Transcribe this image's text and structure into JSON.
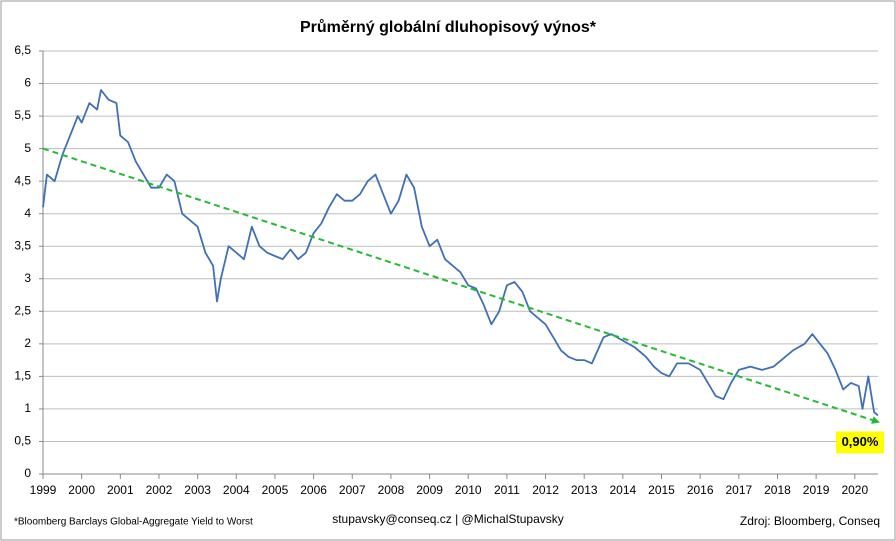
{
  "chart_data": {
    "type": "line",
    "title": "Průměrný globální dluhopisový výnos*",
    "footnote": "*Bloomberg Barclays Global-Aggregate Yield to Worst",
    "contact": "stupavsky@conseq.cz | @MichalStupavsky",
    "source": "Zdroj: Bloomberg, Conseq",
    "xlim": [
      1999,
      2020.6
    ],
    "xticks": [
      1999,
      2000,
      2001,
      2002,
      2003,
      2004,
      2005,
      2006,
      2007,
      2008,
      2009,
      2010,
      2011,
      2012,
      2013,
      2014,
      2015,
      2016,
      2017,
      2018,
      2019,
      2020
    ],
    "ylim": [
      0,
      6.5
    ],
    "yticks": [
      0,
      {
        "value": 0.5,
        "label": "0,5"
      },
      1,
      {
        "value": 1.5,
        "label": "1,5"
      },
      2,
      {
        "value": 2.5,
        "label": "2,5"
      },
      3,
      {
        "value": 3.5,
        "label": "3,5"
      },
      4,
      {
        "value": 4.5,
        "label": "4,5"
      },
      5,
      {
        "value": 5.5,
        "label": "5,5"
      },
      6,
      {
        "value": 6.5,
        "label": "6,5"
      }
    ],
    "grid": true,
    "series": [
      {
        "color": "#3f6fb5",
        "x": [
          1999.0,
          1999.1,
          1999.3,
          1999.5,
          1999.7,
          1999.9,
          2000.0,
          2000.2,
          2000.4,
          2000.5,
          2000.7,
          2000.9,
          2001.0,
          2001.2,
          2001.4,
          2001.6,
          2001.8,
          2002.0,
          2002.2,
          2002.4,
          2002.6,
          2002.8,
          2003.0,
          2003.2,
          2003.4,
          2003.5,
          2003.6,
          2003.8,
          2004.0,
          2004.2,
          2004.4,
          2004.6,
          2004.8,
          2005.0,
          2005.2,
          2005.4,
          2005.6,
          2005.8,
          2006.0,
          2006.2,
          2006.4,
          2006.6,
          2006.8,
          2007.0,
          2007.2,
          2007.4,
          2007.6,
          2007.8,
          2008.0,
          2008.2,
          2008.4,
          2008.6,
          2008.8,
          2009.0,
          2009.2,
          2009.4,
          2009.6,
          2009.8,
          2010.0,
          2010.2,
          2010.4,
          2010.6,
          2010.8,
          2011.0,
          2011.2,
          2011.4,
          2011.6,
          2011.8,
          2012.0,
          2012.2,
          2012.4,
          2012.6,
          2012.8,
          2013.0,
          2013.2,
          2013.5,
          2013.7,
          2014.0,
          2014.3,
          2014.6,
          2014.8,
          2015.0,
          2015.2,
          2015.4,
          2015.7,
          2016.0,
          2016.2,
          2016.4,
          2016.6,
          2016.8,
          2017.0,
          2017.3,
          2017.6,
          2017.9,
          2018.1,
          2018.4,
          2018.7,
          2018.9,
          2019.1,
          2019.3,
          2019.5,
          2019.7,
          2019.9,
          2020.1,
          2020.2,
          2020.35,
          2020.5,
          2020.6
        ],
        "values": [
          4.1,
          4.6,
          4.5,
          4.9,
          5.2,
          5.5,
          5.4,
          5.7,
          5.6,
          5.9,
          5.75,
          5.7,
          5.2,
          5.1,
          4.8,
          4.6,
          4.4,
          4.4,
          4.6,
          4.5,
          4.0,
          3.9,
          3.8,
          3.4,
          3.2,
          2.65,
          3.0,
          3.5,
          3.4,
          3.3,
          3.8,
          3.5,
          3.4,
          3.35,
          3.3,
          3.45,
          3.3,
          3.4,
          3.7,
          3.85,
          4.1,
          4.3,
          4.2,
          4.2,
          4.3,
          4.5,
          4.6,
          4.3,
          4.0,
          4.2,
          4.6,
          4.4,
          3.8,
          3.5,
          3.6,
          3.3,
          3.2,
          3.1,
          2.9,
          2.85,
          2.6,
          2.3,
          2.5,
          2.9,
          2.95,
          2.8,
          2.5,
          2.4,
          2.3,
          2.1,
          1.9,
          1.8,
          1.75,
          1.75,
          1.7,
          2.1,
          2.15,
          2.05,
          1.95,
          1.8,
          1.65,
          1.55,
          1.5,
          1.7,
          1.7,
          1.6,
          1.4,
          1.2,
          1.15,
          1.4,
          1.6,
          1.65,
          1.6,
          1.65,
          1.75,
          1.9,
          2.0,
          2.15,
          2.0,
          1.85,
          1.6,
          1.3,
          1.4,
          1.35,
          1.0,
          1.5,
          0.95,
          0.9
        ]
      },
      {
        "color": "#22bb33",
        "dashed": true,
        "arrow": true,
        "x": [
          1999.0,
          2020.6
        ],
        "values": [
          5.0,
          0.8
        ]
      }
    ],
    "annotation": {
      "value": 0.9,
      "label": "0,90%",
      "color": "#ffff00"
    }
  }
}
